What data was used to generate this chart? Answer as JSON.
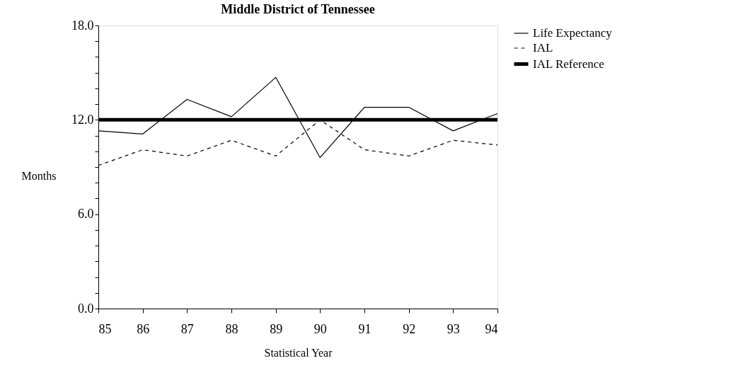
{
  "chart_data": {
    "type": "line",
    "title": "Middle District of Tennessee",
    "xlabel": "Statistical Year",
    "ylabel": "Months",
    "x": [
      85,
      86,
      87,
      88,
      89,
      90,
      91,
      92,
      93,
      94
    ],
    "series": [
      {
        "name": "Life Expectancy",
        "color": "#000000",
        "line_style": "solid",
        "values": [
          11.3,
          11.1,
          13.3,
          12.2,
          14.7,
          9.6,
          12.8,
          12.8,
          11.3,
          12.4
        ]
      },
      {
        "name": "IAL",
        "color": "#000000",
        "line_style": "dashed",
        "values": [
          9.1,
          10.1,
          9.7,
          10.7,
          9.7,
          12.0,
          10.1,
          9.7,
          10.7,
          10.4
        ]
      }
    ],
    "ref_lines": [
      {
        "axis": "y",
        "value": 12.0,
        "label": "IAL Reference",
        "color": "#000000"
      }
    ],
    "xlim": [
      85,
      94
    ],
    "xticks": [
      85,
      86,
      87,
      88,
      89,
      90,
      91,
      92,
      93,
      94
    ],
    "ylim": [
      0,
      18
    ],
    "yticks": [
      {
        "value": 0,
        "label": "0.0"
      },
      {
        "value": 1,
        "label": null
      },
      {
        "value": 2,
        "label": null
      },
      {
        "value": 3,
        "label": null
      },
      {
        "value": 4,
        "label": null
      },
      {
        "value": 5,
        "label": null
      },
      {
        "value": 6,
        "label": "6.0"
      },
      {
        "value": 7,
        "label": null
      },
      {
        "value": 8,
        "label": null
      },
      {
        "value": 9,
        "label": null
      },
      {
        "value": 10,
        "label": null
      },
      {
        "value": 11,
        "label": null
      },
      {
        "value": 12,
        "label": "12.0"
      },
      {
        "value": 13,
        "label": null
      },
      {
        "value": 14,
        "label": null
      },
      {
        "value": 15,
        "label": null
      },
      {
        "value": 16,
        "label": null
      },
      {
        "value": 17,
        "label": null
      },
      {
        "value": 18,
        "label": "18.0"
      }
    ],
    "grid": false,
    "legend": "right",
    "marker": "none"
  }
}
